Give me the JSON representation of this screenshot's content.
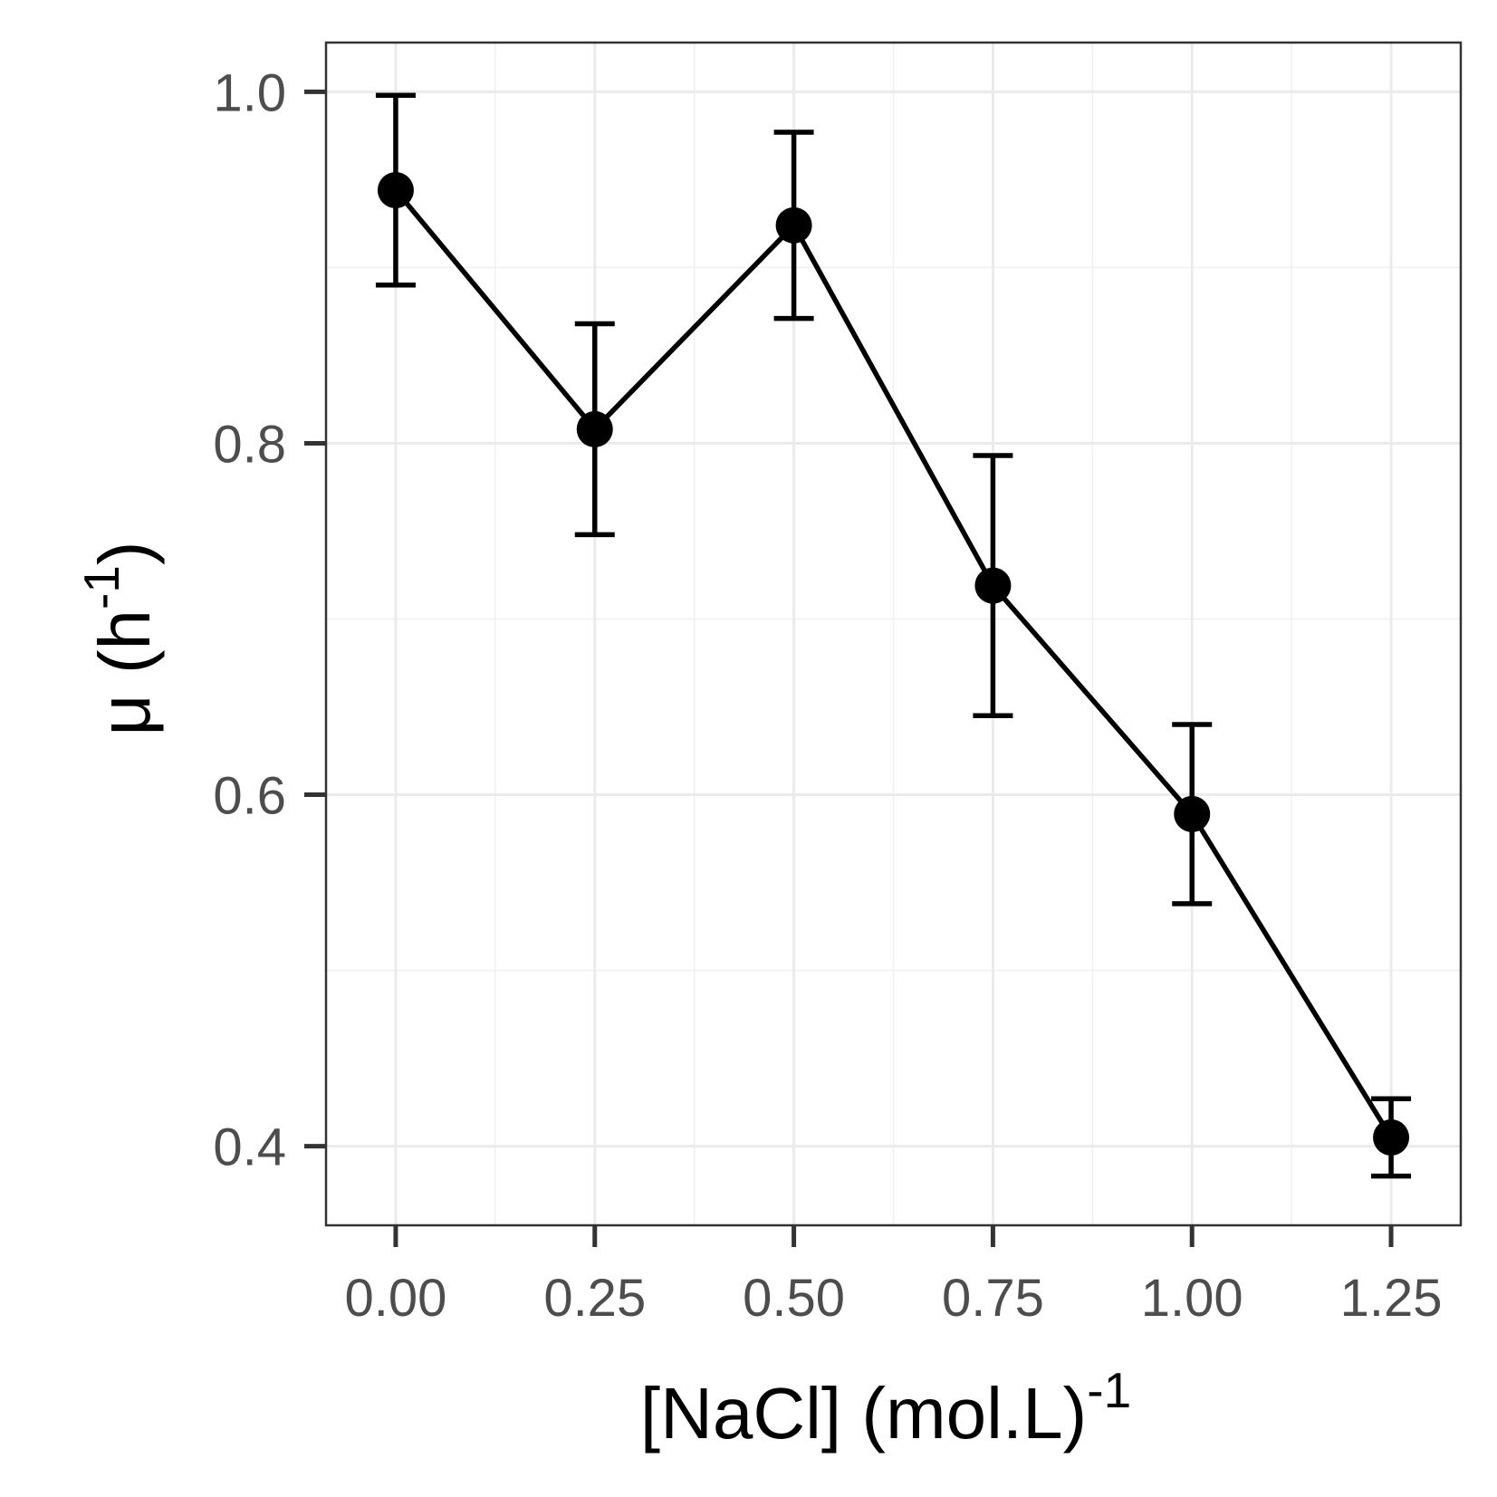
{
  "chart_data": {
    "type": "line",
    "title": "",
    "xlabel": "[NaCl] (mol.L)",
    "xlabel_superscript": "-1",
    "ylabel": "μ (h",
    "ylabel_superscript": "-1",
    "ylabel_close": ")",
    "xlim": [
      -0.0875,
      1.3375
    ],
    "ylim": [
      0.355,
      1.028
    ],
    "x_ticks": [
      0.0,
      0.25,
      0.5,
      0.75,
      1.0,
      1.25
    ],
    "x_tick_labels": [
      "0.00",
      "0.25",
      "0.50",
      "0.75",
      "1.00",
      "1.25"
    ],
    "y_ticks": [
      0.4,
      0.6,
      0.8,
      1.0
    ],
    "y_tick_labels": [
      "0.4",
      "0.6",
      "0.8",
      "1.0"
    ],
    "grid": true,
    "series": [
      {
        "x": [
          0.0,
          0.25,
          0.5,
          0.75,
          1.0,
          1.25
        ],
        "y": [
          0.944,
          0.808,
          0.924,
          0.719,
          0.589,
          0.405
        ],
        "error": [
          0.054,
          0.06,
          0.053,
          0.074,
          0.051,
          0.022
        ],
        "color": "#000000"
      }
    ]
  }
}
